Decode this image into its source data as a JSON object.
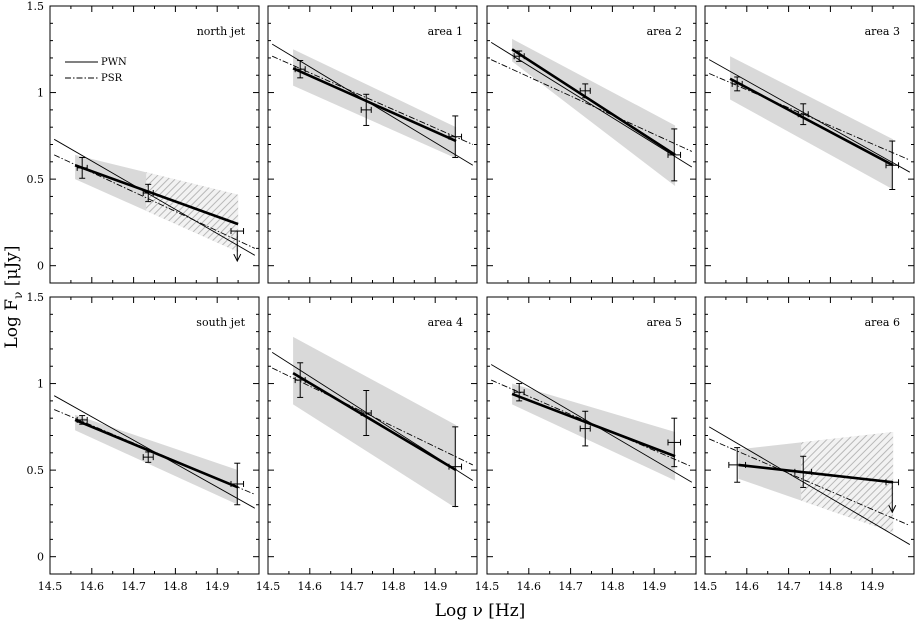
{
  "chart_data": {
    "type": "scatter",
    "xlabel": "Log ν  [Hz]",
    "ylabel_main": "Log F",
    "ylabel_sub": "ν",
    "ylabel_unit": "  [μJy]",
    "xlim": [
      14.5,
      15.0
    ],
    "ylim": [
      -0.1,
      1.5
    ],
    "xticks": [
      14.5,
      14.6,
      14.7,
      14.8,
      14.9
    ],
    "xtick_labels": [
      "14.5",
      "14.6",
      "14.7",
      "14.8",
      "14.9"
    ],
    "yticks": [
      0,
      0.5,
      1,
      1.5
    ],
    "ytick_labels": [
      "0",
      "0.5",
      "1",
      "1.5"
    ],
    "legend": {
      "placement": "top-left of first panel",
      "entries": [
        {
          "name": "PWN",
          "style": "solid"
        },
        {
          "name": "PSR",
          "style": "dash-dot"
        }
      ]
    },
    "panels": [
      {
        "title": "north jet",
        "points": [
          {
            "x": 14.577,
            "y": 0.565,
            "yerr": 0.06,
            "xerr": 0.012,
            "upper_limit": false
          },
          {
            "x": 14.735,
            "y": 0.42,
            "yerr": 0.05,
            "xerr": 0.012,
            "upper_limit": false
          },
          {
            "x": 14.948,
            "y": 0.2,
            "yerr": 0.0,
            "xerr": 0.015,
            "upper_limit": true
          }
        ],
        "fit": [
          [
            14.56,
            0.58
          ],
          [
            14.95,
            0.24
          ]
        ],
        "band": [
          [
            14.56,
            0.64
          ],
          [
            14.95,
            0.41
          ],
          [
            14.95,
            0.08
          ],
          [
            14.56,
            0.5
          ]
        ],
        "hatch_from_x": 14.73,
        "pwn": [
          [
            14.51,
            0.73
          ],
          [
            14.99,
            0.06
          ]
        ],
        "psr": [
          [
            14.51,
            0.64
          ],
          [
            14.99,
            0.1
          ]
        ]
      },
      {
        "title": "area 1",
        "points": [
          {
            "x": 14.577,
            "y": 1.135,
            "yerr": 0.05,
            "xerr": 0.012,
            "upper_limit": false
          },
          {
            "x": 14.735,
            "y": 0.9,
            "yerr": 0.09,
            "xerr": 0.012,
            "upper_limit": false
          },
          {
            "x": 14.948,
            "y": 0.745,
            "yerr": 0.12,
            "xerr": 0.015,
            "upper_limit": false
          }
        ],
        "fit": [
          [
            14.56,
            1.14
          ],
          [
            14.95,
            0.72
          ]
        ],
        "band": [
          [
            14.56,
            1.25
          ],
          [
            14.95,
            0.8
          ],
          [
            14.95,
            0.62
          ],
          [
            14.56,
            1.04
          ]
        ],
        "pwn": [
          [
            14.51,
            1.28
          ],
          [
            14.99,
            0.58
          ]
        ],
        "psr": [
          [
            14.51,
            1.21
          ],
          [
            14.99,
            0.7
          ]
        ]
      },
      {
        "title": "area 2",
        "points": [
          {
            "x": 14.577,
            "y": 1.21,
            "yerr": 0.03,
            "xerr": 0.012,
            "upper_limit": false
          },
          {
            "x": 14.735,
            "y": 1.01,
            "yerr": 0.04,
            "xerr": 0.012,
            "upper_limit": false
          },
          {
            "x": 14.948,
            "y": 0.64,
            "yerr": 0.15,
            "xerr": 0.015,
            "upper_limit": false
          }
        ],
        "fit": [
          [
            14.56,
            1.25
          ],
          [
            14.95,
            0.64
          ]
        ],
        "band": [
          [
            14.56,
            1.31
          ],
          [
            14.95,
            0.81
          ],
          [
            14.95,
            0.46
          ],
          [
            14.56,
            1.18
          ]
        ],
        "pwn": [
          [
            14.51,
            1.29
          ],
          [
            14.99,
            0.57
          ]
        ],
        "psr": [
          [
            14.51,
            1.19
          ],
          [
            14.99,
            0.66
          ]
        ]
      },
      {
        "title": "area 3",
        "points": [
          {
            "x": 14.577,
            "y": 1.05,
            "yerr": 0.04,
            "xerr": 0.012,
            "upper_limit": false
          },
          {
            "x": 14.735,
            "y": 0.875,
            "yerr": 0.06,
            "xerr": 0.012,
            "upper_limit": false
          },
          {
            "x": 14.948,
            "y": 0.58,
            "yerr": 0.14,
            "xerr": 0.015,
            "upper_limit": false
          }
        ],
        "fit": [
          [
            14.56,
            1.08
          ],
          [
            14.95,
            0.58
          ]
        ],
        "band": [
          [
            14.56,
            1.21
          ],
          [
            14.95,
            0.73
          ],
          [
            14.95,
            0.44
          ],
          [
            14.56,
            0.96
          ]
        ],
        "pwn": [
          [
            14.51,
            1.19
          ],
          [
            14.99,
            0.54
          ]
        ],
        "psr": [
          [
            14.51,
            1.11
          ],
          [
            14.99,
            0.61
          ]
        ]
      },
      {
        "title": "south jet",
        "points": [
          {
            "x": 14.577,
            "y": 0.79,
            "yerr": 0.025,
            "xerr": 0.012,
            "upper_limit": false
          },
          {
            "x": 14.735,
            "y": 0.575,
            "yerr": 0.03,
            "xerr": 0.012,
            "upper_limit": false
          },
          {
            "x": 14.948,
            "y": 0.42,
            "yerr": 0.12,
            "xerr": 0.015,
            "upper_limit": false
          }
        ],
        "fit": [
          [
            14.56,
            0.79
          ],
          [
            14.95,
            0.4
          ]
        ],
        "band": [
          [
            14.56,
            0.82
          ],
          [
            14.95,
            0.5
          ],
          [
            14.95,
            0.3
          ],
          [
            14.56,
            0.73
          ]
        ],
        "pwn": [
          [
            14.51,
            0.93
          ],
          [
            14.99,
            0.28
          ]
        ],
        "psr": [
          [
            14.51,
            0.85
          ],
          [
            14.99,
            0.36
          ]
        ]
      },
      {
        "title": "area 4",
        "points": [
          {
            "x": 14.577,
            "y": 1.02,
            "yerr": 0.1,
            "xerr": 0.012,
            "upper_limit": false
          },
          {
            "x": 14.735,
            "y": 0.83,
            "yerr": 0.13,
            "xerr": 0.012,
            "upper_limit": false
          },
          {
            "x": 14.948,
            "y": 0.52,
            "yerr": 0.23,
            "xerr": 0.015,
            "upper_limit": false
          }
        ],
        "fit": [
          [
            14.56,
            1.06
          ],
          [
            14.95,
            0.5
          ]
        ],
        "band": [
          [
            14.56,
            1.27
          ],
          [
            14.95,
            0.76
          ],
          [
            14.95,
            0.28
          ],
          [
            14.56,
            0.88
          ]
        ],
        "pwn": [
          [
            14.51,
            1.18
          ],
          [
            14.99,
            0.44
          ]
        ],
        "psr": [
          [
            14.51,
            1.09
          ],
          [
            14.99,
            0.53
          ]
        ]
      },
      {
        "title": "area 5",
        "points": [
          {
            "x": 14.577,
            "y": 0.95,
            "yerr": 0.05,
            "xerr": 0.012,
            "upper_limit": false
          },
          {
            "x": 14.735,
            "y": 0.74,
            "yerr": 0.1,
            "xerr": 0.012,
            "upper_limit": false
          },
          {
            "x": 14.948,
            "y": 0.66,
            "yerr": 0.14,
            "xerr": 0.015,
            "upper_limit": false
          }
        ],
        "fit": [
          [
            14.56,
            0.94
          ],
          [
            14.95,
            0.58
          ]
        ],
        "band": [
          [
            14.56,
            1.0
          ],
          [
            14.95,
            0.72
          ],
          [
            14.95,
            0.44
          ],
          [
            14.56,
            0.88
          ]
        ],
        "pwn": [
          [
            14.51,
            1.11
          ],
          [
            14.99,
            0.43
          ]
        ],
        "psr": [
          [
            14.51,
            1.02
          ],
          [
            14.99,
            0.52
          ]
        ]
      },
      {
        "title": "area 6",
        "points": [
          {
            "x": 14.577,
            "y": 0.53,
            "yerr": 0.1,
            "xerr": 0.02,
            "upper_limit": false
          },
          {
            "x": 14.735,
            "y": 0.49,
            "yerr": 0.09,
            "xerr": 0.02,
            "upper_limit": false
          },
          {
            "x": 14.948,
            "y": 0.43,
            "yerr": 0.0,
            "xerr": 0.015,
            "upper_limit": true
          }
        ],
        "fit": [
          [
            14.58,
            0.53
          ],
          [
            14.95,
            0.43
          ]
        ],
        "band": [
          [
            14.58,
            0.62
          ],
          [
            14.95,
            0.72
          ],
          [
            14.95,
            0.14
          ],
          [
            14.58,
            0.45
          ]
        ],
        "hatch_from_x": 14.73,
        "pwn": [
          [
            14.51,
            0.75
          ],
          [
            14.99,
            0.07
          ]
        ],
        "psr": [
          [
            14.51,
            0.68
          ],
          [
            14.99,
            0.18
          ]
        ]
      }
    ]
  }
}
